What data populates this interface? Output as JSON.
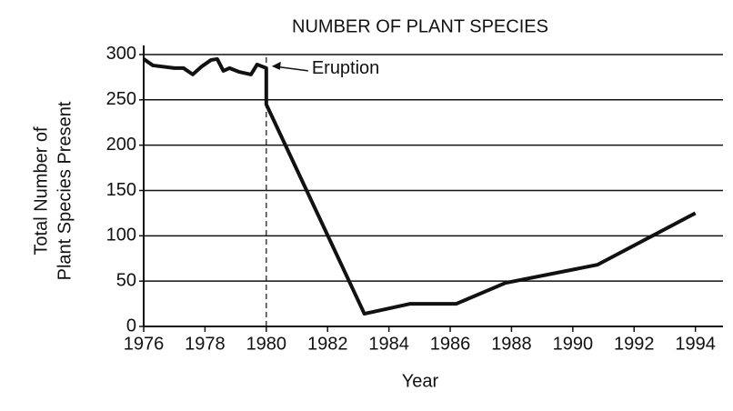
{
  "chart_data": {
    "type": "line",
    "title": "NUMBER OF PLANT SPECIES",
    "x_label": "Year",
    "y_label": [
      "Total Number of",
      "Plant Species Present"
    ],
    "x": [
      1976,
      1976.3,
      1977,
      1977.3,
      1977.6,
      1977.9,
      1978.2,
      1978.4,
      1978.6,
      1978.8,
      1979.1,
      1979.5,
      1979.7,
      1980,
      1980,
      1983.2,
      1984.7,
      1986.2,
      1987.8,
      1990.8,
      1994
    ],
    "series": [
      {
        "name": "Plant species",
        "color": "#111111",
        "values": [
          295,
          288,
          285,
          285,
          278,
          287,
          294,
          295,
          282,
          285,
          281,
          278,
          289,
          285,
          245,
          14,
          25,
          25,
          48,
          68,
          125
        ]
      }
    ],
    "xlim": [
      1976,
      1994.9
    ],
    "ylim": [
      0,
      310
    ],
    "xticks": [
      1976,
      1978,
      1980,
      1982,
      1984,
      1986,
      1988,
      1990,
      1992,
      1994
    ],
    "yticks": [
      0,
      50,
      100,
      150,
      200,
      250,
      300
    ],
    "grid": true,
    "annotation": {
      "text": "Eruption",
      "x": 1980,
      "y": 285
    }
  }
}
